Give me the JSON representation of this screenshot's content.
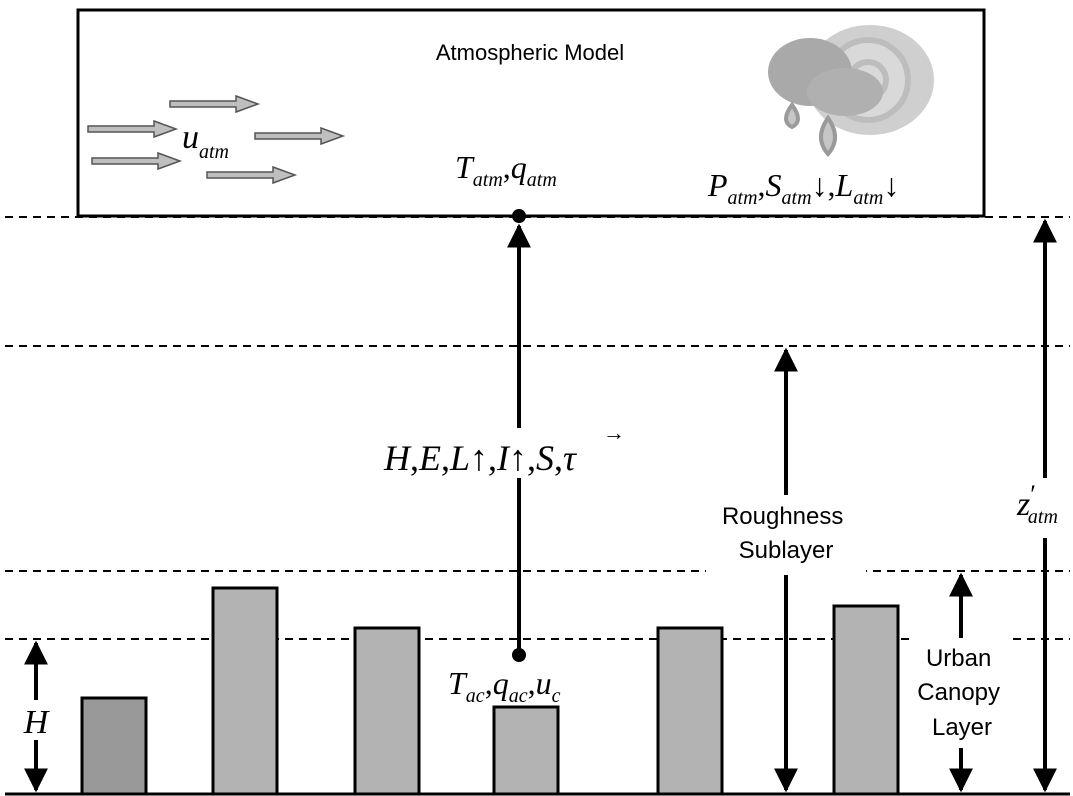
{
  "atmosphere": {
    "title": "Atmospheric Model",
    "wind_label_main": "u",
    "wind_label_sub": "atm",
    "temp_label": "T",
    "temp_sub": "atm",
    "humidity_label": "q",
    "humidity_sub": "atm",
    "forcing": {
      "p": "P",
      "p_sub": "atm",
      "s": "S",
      "s_sub": "atm",
      "l": "L",
      "l_sub": "atm",
      "down_arrow": "↓"
    }
  },
  "fluxes": {
    "h": "H",
    "e": "E",
    "l": "L",
    "i": "I",
    "s": "S",
    "tau": "τ",
    "up_arrow": "↑",
    "vector_arrow": "→"
  },
  "canopy": {
    "t": "T",
    "t_sub": "ac",
    "q": "q",
    "q_sub": "ac",
    "u": "u",
    "u_sub": "c"
  },
  "labels": {
    "roughness_line1": "Roughness",
    "roughness_line2": "Sublayer",
    "urban_line1": "Urban",
    "urban_line2": "Canopy",
    "urban_line3": "Layer",
    "height": "H",
    "z_main": "z",
    "z_prime": "′",
    "z_sub": "atm"
  },
  "colors": {
    "building_dark": "#999999",
    "building_light": "#b3b3b3",
    "wind_arrow": "#bfbfbf",
    "weather_icon": "#c8c8c8"
  },
  "icons": {
    "weather": "rain-cloud-sun-icon",
    "wind": "wind-arrow-icon"
  }
}
